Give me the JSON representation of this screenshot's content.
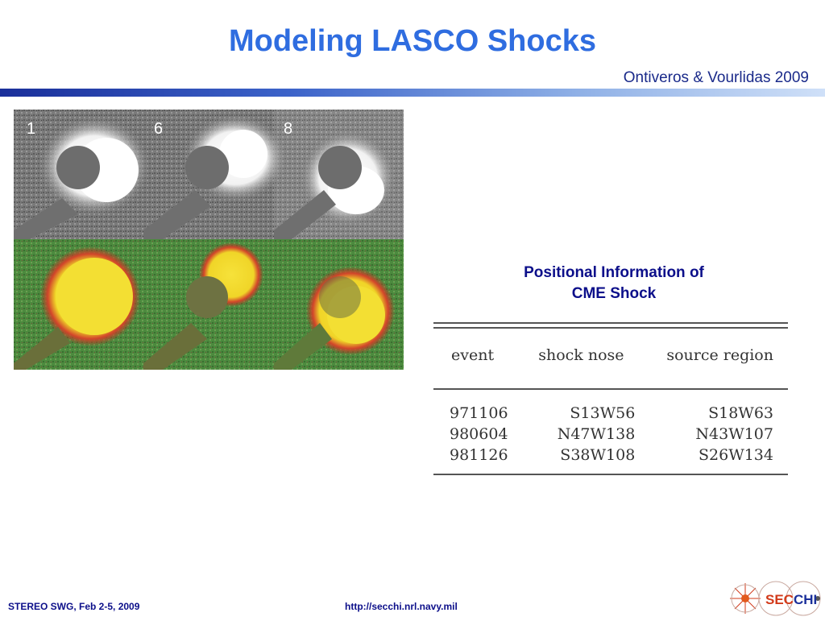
{
  "slide": {
    "title": "Modeling LASCO Shocks",
    "credit": "Ontiveros & Vourlidas 2009"
  },
  "figure": {
    "panel_labels": [
      "1",
      "6",
      "8"
    ]
  },
  "table": {
    "caption_line1": "Positional Information of",
    "caption_line2": "CME Shock",
    "headers": [
      "event",
      "shock nose",
      "source region"
    ],
    "rows": [
      [
        "971106",
        "S13W56",
        "S18W63"
      ],
      [
        "980604",
        "N47W138",
        "N43W107"
      ],
      [
        "981126",
        "S38W108",
        "S26W134"
      ]
    ]
  },
  "footer": {
    "left": "STEREO SWG, Feb 2-5, 2009",
    "center": "http://secchi.nrl.navy.mil"
  },
  "logo": {
    "text_sec": "SEC",
    "text_chi": "CHI",
    "color_sec": "#d23a1a",
    "color_chi": "#1a2f9a"
  },
  "colors": {
    "title": "#2f6de0",
    "caption": "#0c0f8a"
  }
}
